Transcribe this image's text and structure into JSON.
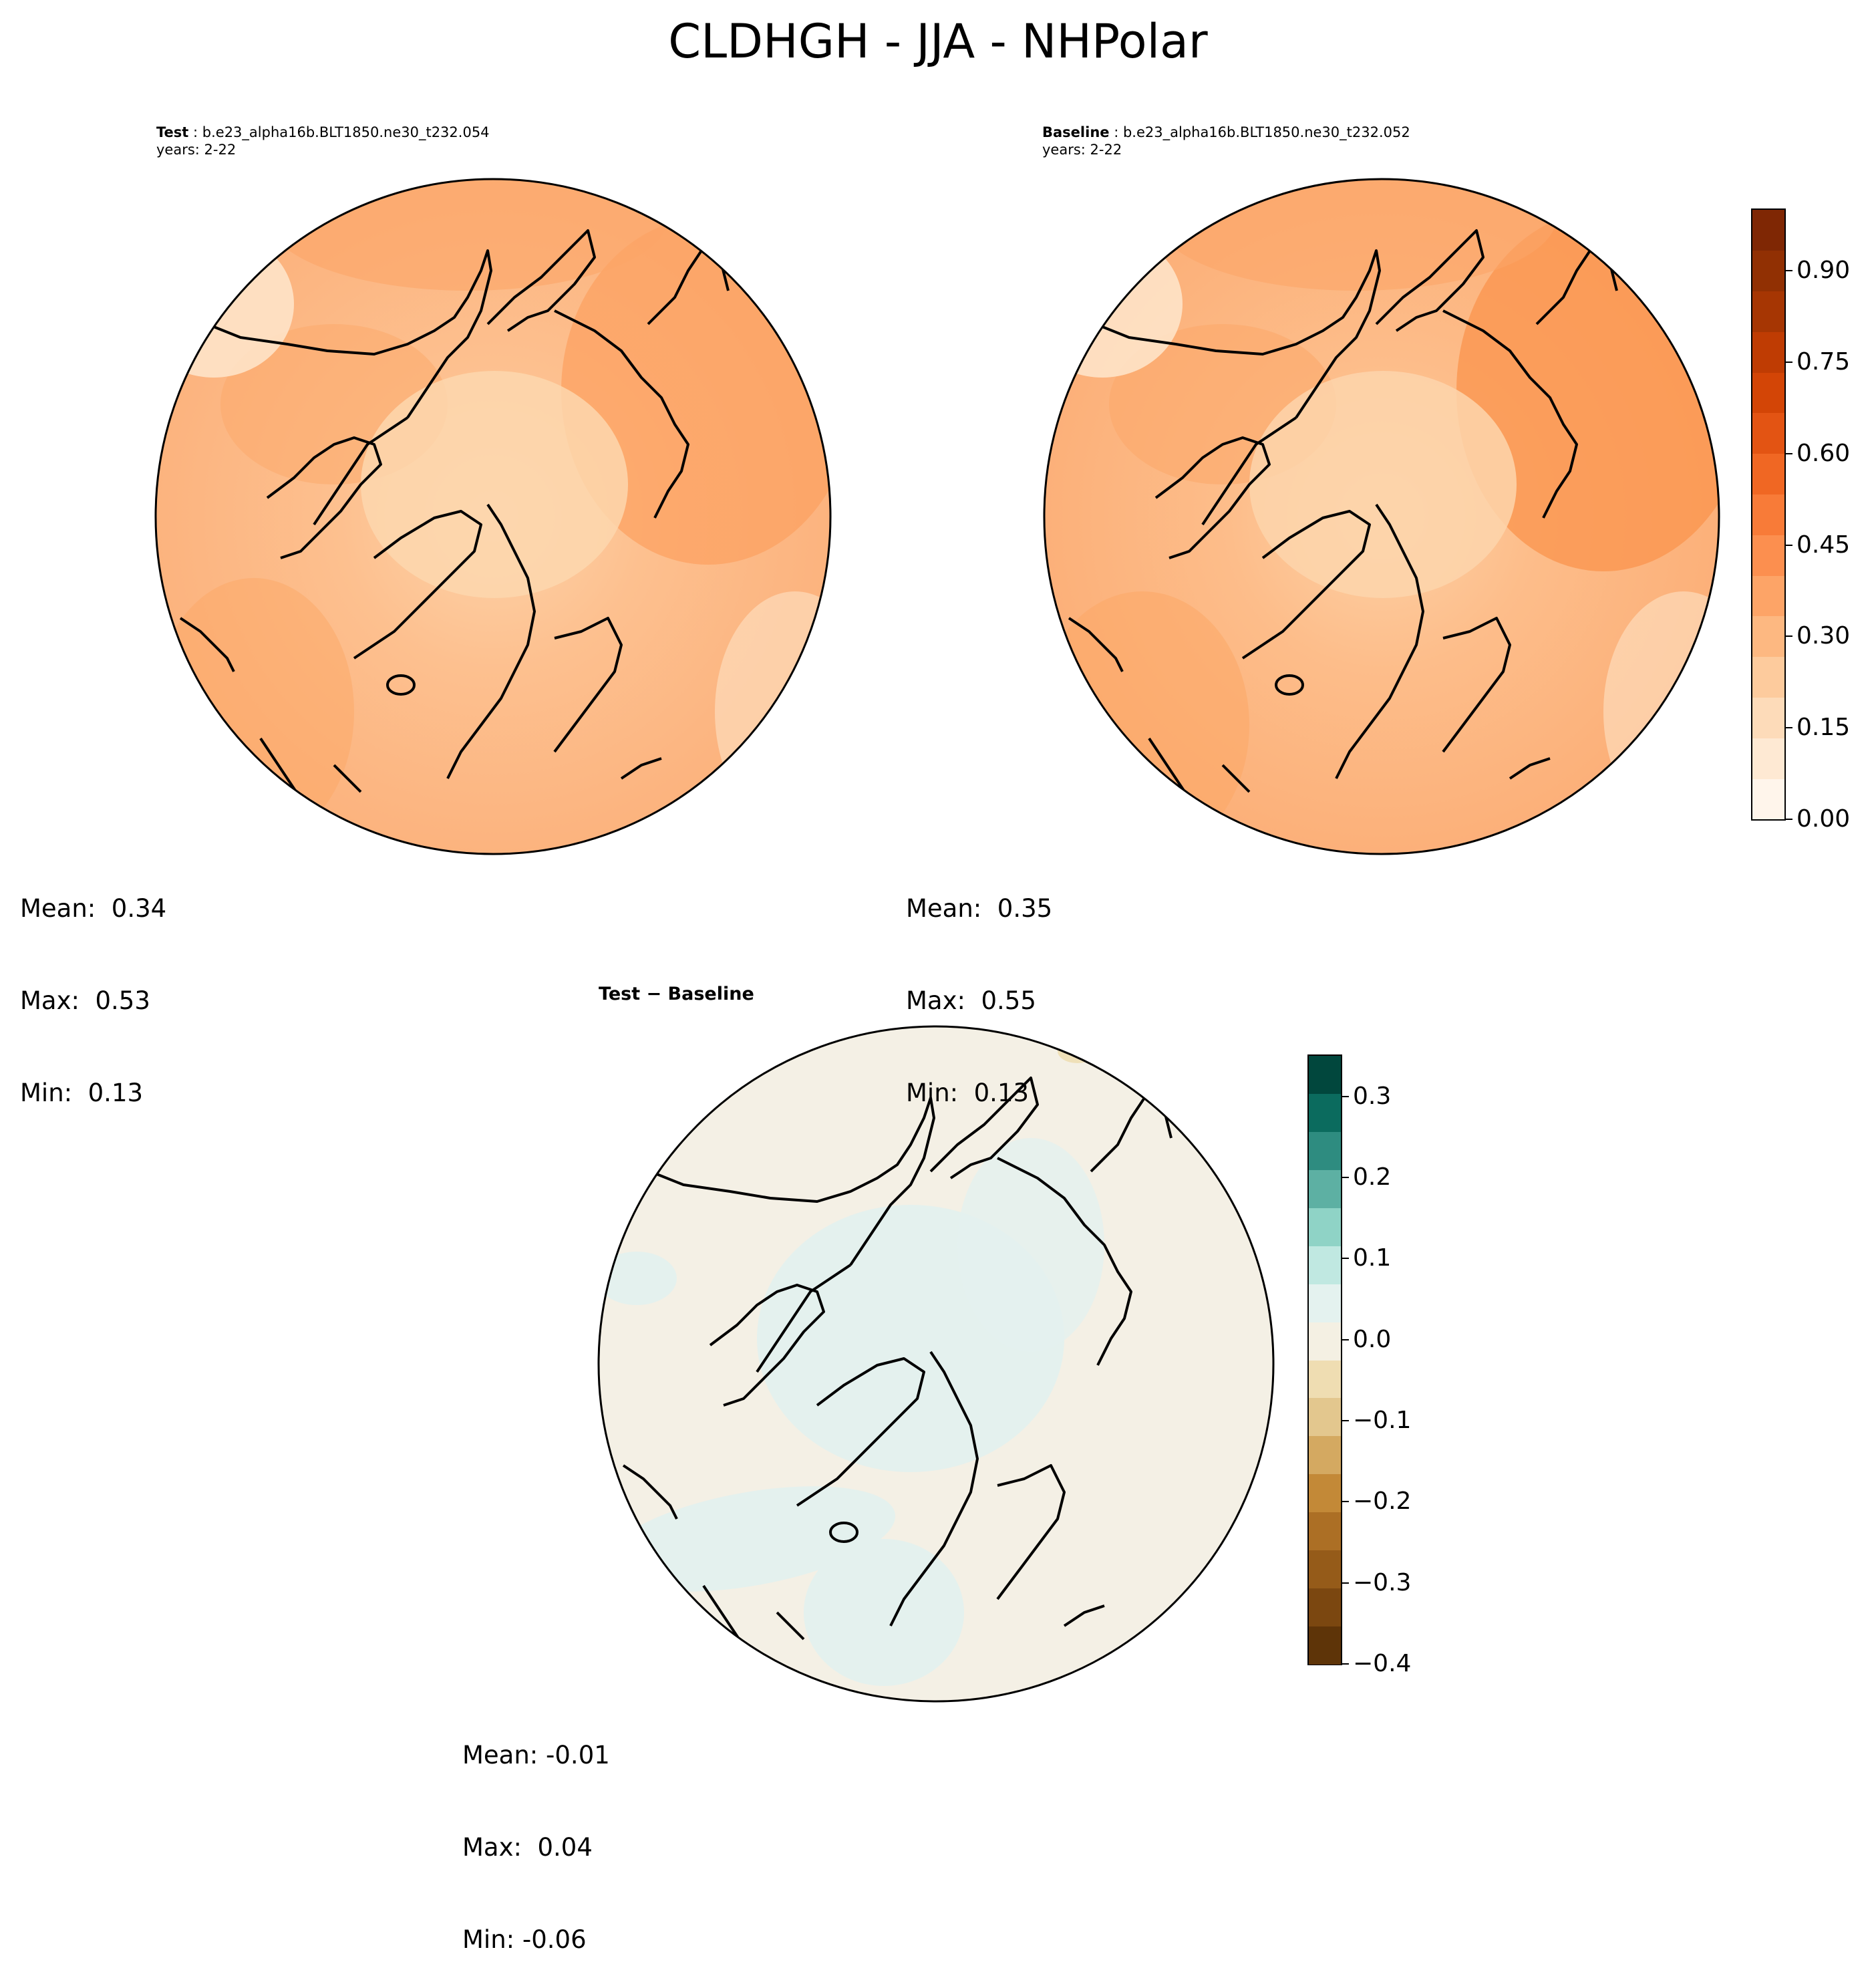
{
  "figure": {
    "title": "CLDHGH - JJA - NHPolar"
  },
  "panels": {
    "test": {
      "label_bold": "Test",
      "label_case": "b.e23_alpha16b.BLT1850.ne30_t232.054",
      "years": "years: 2-22",
      "stats": {
        "mean": "Mean:  0.34",
        "max": "Max:  0.53",
        "min": "Min:  0.13"
      }
    },
    "baseline": {
      "label_bold": "Baseline",
      "label_case": "b.e23_alpha16b.BLT1850.ne30_t232.052",
      "years": "years: 2-22",
      "stats": {
        "mean": "Mean:  0.35",
        "max": "Max:  0.55",
        "min": "Min:  0.13"
      }
    },
    "diff": {
      "label": "Test − Baseline",
      "stats": {
        "mean": "Mean: -0.01",
        "max": "Max:  0.04",
        "min": "Min: -0.06"
      }
    }
  },
  "colorbars": {
    "main": {
      "ticks": [
        "0.00",
        "0.15",
        "0.30",
        "0.45",
        "0.60",
        "0.75",
        "0.90"
      ],
      "tick_values": [
        0.0,
        0.15,
        0.3,
        0.45,
        0.6,
        0.75,
        0.9
      ],
      "range": [
        0.0,
        1.0
      ],
      "colors": [
        "#fff5eb",
        "#fee9d3",
        "#fddbb9",
        "#fdcb9d",
        "#fdb881",
        "#fda467",
        "#fc8f4f",
        "#f87b38",
        "#f06723",
        "#e35413",
        "#d34506",
        "#bf3c03",
        "#a63603",
        "#913003",
        "#7f2704"
      ]
    },
    "diff": {
      "ticks": [
        "0.3",
        "0.2",
        "0.1",
        "0.0",
        "−0.1",
        "−0.2",
        "−0.3",
        "−0.4"
      ],
      "tick_values": [
        0.3,
        0.2,
        0.1,
        0.0,
        -0.1,
        -0.2,
        -0.3,
        -0.4
      ],
      "range": [
        -0.4,
        0.35
      ],
      "colors": [
        "#5e3408",
        "#7b4710",
        "#955b19",
        "#ac6f25",
        "#c38937",
        "#d4a961",
        "#e3c78e",
        "#efddb2",
        "#f4f0e3",
        "#e4f2ef",
        "#c0e8e1",
        "#8fd3c6",
        "#5db0a3",
        "#2e8c80",
        "#0b6b5e",
        "#01473d"
      ]
    }
  },
  "chart_data": [
    {
      "type": "heatmap",
      "title": "Test",
      "projection": "North polar stereographic",
      "field": "CLDHGH",
      "season": "JJA",
      "vmin": 0.0,
      "vmax": 1.0,
      "mean": 0.34,
      "max": 0.53,
      "min": 0.13
    },
    {
      "type": "heatmap",
      "title": "Baseline",
      "projection": "North polar stereographic",
      "field": "CLDHGH",
      "season": "JJA",
      "vmin": 0.0,
      "vmax": 1.0,
      "mean": 0.35,
      "max": 0.55,
      "min": 0.13
    },
    {
      "type": "heatmap",
      "title": "Test − Baseline",
      "projection": "North polar stereographic",
      "field": "CLDHGH",
      "season": "JJA",
      "vmin": -0.4,
      "vmax": 0.35,
      "mean": -0.01,
      "max": 0.04,
      "min": -0.06
    }
  ]
}
